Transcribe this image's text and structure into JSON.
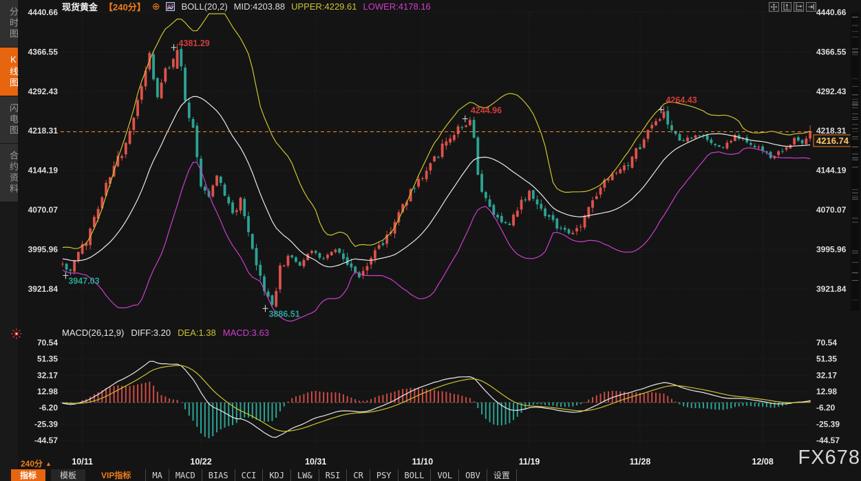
{
  "window": {
    "watermark": "FX678"
  },
  "sidebar": {
    "tabs": [
      {
        "label": "分时图",
        "active": false
      },
      {
        "label": "K线图",
        "active": true
      },
      {
        "label": "闪电图",
        "active": false
      },
      {
        "label": "合约资料",
        "active": false
      }
    ]
  },
  "header": {
    "symbol": "现货黄金",
    "period": "【240分】",
    "boll_label": "BOLL(20,2)",
    "mid_label": "MID:4203.88",
    "upper_label": "UPPER:4229.61",
    "lower_label": "LOWER:4178.16"
  },
  "macd_header": {
    "label": "MACD(26,12,9)",
    "diff_label": "DIFF:3.20",
    "dea_label": "DEA:1.38",
    "macd_label": "MACD:3.63"
  },
  "footer": {
    "period_label": "240分",
    "buttons": [
      {
        "label": "指标",
        "style": "active"
      },
      {
        "label": "模板",
        "style": "tab"
      },
      {
        "label": "VIP指标",
        "style": "vip"
      },
      {
        "label": "MA",
        "style": "plain"
      },
      {
        "label": "MACD",
        "style": "plain"
      },
      {
        "label": "BIAS",
        "style": "plain"
      },
      {
        "label": "CCI",
        "style": "plain"
      },
      {
        "label": "KDJ",
        "style": "plain"
      },
      {
        "label": "LW&",
        "style": "plain"
      },
      {
        "label": "RSI",
        "style": "plain"
      },
      {
        "label": "CR",
        "style": "plain"
      },
      {
        "label": "PSY",
        "style": "plain"
      },
      {
        "label": "BOLL",
        "style": "plain"
      },
      {
        "label": "VOL",
        "style": "plain"
      },
      {
        "label": "OBV",
        "style": "plain"
      },
      {
        "label": "设置",
        "style": "plain"
      }
    ]
  },
  "colors": {
    "up": "#df514c",
    "down": "#2ba394",
    "boll_upper": "#cdc430",
    "boll_mid": "#ebebeb",
    "boll_lower": "#cf3ecf",
    "accent_orange": "#f07d1a",
    "price_line": "#ff8a1e",
    "last_price_text": "#ffc966",
    "grid": "#2c2c2c",
    "hist_pos": "#cf4a45",
    "hist_neg": "#2ba394",
    "macd_diff_line": "#ebebeb",
    "macd_dea_line": "#cdc430",
    "annotation_high": "#d23c3c",
    "annotation_low": "#2ba394",
    "axis_text": "#dedede",
    "zero_line": "#5a5a5a"
  },
  "chart_data": [
    {
      "type": "candlestick",
      "title": "现货黄金 240分",
      "ylabel": "price",
      "grid": true,
      "y_ticks": [
        4440.66,
        4366.55,
        4292.43,
        4218.31,
        4144.19,
        4070.07,
        3995.96,
        3921.84
      ],
      "x_ticks": [
        {
          "label": "10/11",
          "index": 5
        },
        {
          "label": "10/22",
          "index": 35
        },
        {
          "label": "10/31",
          "index": 64
        },
        {
          "label": "11/10",
          "index": 91
        },
        {
          "label": "11/19",
          "index": 118
        },
        {
          "label": "11/28",
          "index": 146
        },
        {
          "label": "12/08",
          "index": 177
        }
      ],
      "n_candles": 190,
      "last_price": 4216.74,
      "price_anchors": [
        [
          0,
          3968
        ],
        [
          2,
          3952
        ],
        [
          4,
          3988
        ],
        [
          6,
          4012
        ],
        [
          9,
          4080
        ],
        [
          12,
          4135
        ],
        [
          15,
          4178
        ],
        [
          17,
          4210
        ],
        [
          19,
          4275
        ],
        [
          21,
          4335
        ],
        [
          22,
          4358
        ],
        [
          24,
          4278
        ],
        [
          26,
          4332
        ],
        [
          28,
          4352
        ],
        [
          29,
          4372
        ],
        [
          30,
          4348
        ],
        [
          31,
          4268
        ],
        [
          33,
          4228
        ],
        [
          35,
          4120
        ],
        [
          37,
          4096
        ],
        [
          39,
          4136
        ],
        [
          41,
          4100
        ],
        [
          43,
          4062
        ],
        [
          45,
          4086
        ],
        [
          47,
          4020
        ],
        [
          49,
          3966
        ],
        [
          51,
          3916
        ],
        [
          53,
          3895
        ],
        [
          55,
          3958
        ],
        [
          57,
          3986
        ],
        [
          60,
          3966
        ],
        [
          63,
          3996
        ],
        [
          66,
          3978
        ],
        [
          69,
          3998
        ],
        [
          72,
          3972
        ],
        [
          75,
          3942
        ],
        [
          77,
          3968
        ],
        [
          79,
          3996
        ],
        [
          81,
          4008
        ],
        [
          84,
          4048
        ],
        [
          87,
          4092
        ],
        [
          90,
          4126
        ],
        [
          93,
          4158
        ],
        [
          96,
          4186
        ],
        [
          99,
          4216
        ],
        [
          101,
          4228
        ],
        [
          103,
          4236
        ],
        [
          104,
          4198
        ],
        [
          105,
          4128
        ],
        [
          107,
          4086
        ],
        [
          110,
          4056
        ],
        [
          113,
          4042
        ],
        [
          116,
          4082
        ],
        [
          118,
          4106
        ],
        [
          120,
          4086
        ],
        [
          122,
          4066
        ],
        [
          125,
          4042
        ],
        [
          128,
          4024
        ],
        [
          131,
          4042
        ],
        [
          134,
          4086
        ],
        [
          137,
          4120
        ],
        [
          140,
          4138
        ],
        [
          143,
          4152
        ],
        [
          146,
          4192
        ],
        [
          149,
          4228
        ],
        [
          152,
          4250
        ],
        [
          154,
          4216
        ],
        [
          156,
          4196
        ],
        [
          158,
          4202
        ],
        [
          161,
          4210
        ],
        [
          164,
          4196
        ],
        [
          167,
          4186
        ],
        [
          170,
          4210
        ],
        [
          173,
          4196
        ],
        [
          176,
          4188
        ],
        [
          179,
          4168
        ],
        [
          182,
          4180
        ],
        [
          185,
          4206
        ],
        [
          187,
          4196
        ],
        [
          189,
          4216.74
        ]
      ],
      "key_points": [
        {
          "index": 2,
          "type": "low",
          "value": 3947.03
        },
        {
          "index": 29,
          "type": "high",
          "value": 4381.29
        },
        {
          "index": 53,
          "type": "low",
          "value": 3886.51
        },
        {
          "index": 103,
          "type": "high",
          "value": 4244.96
        },
        {
          "index": 152,
          "type": "high",
          "value": 4264.43
        }
      ],
      "bollinger": {
        "period": 20,
        "deviation": 2,
        "mid": 4203.88,
        "upper": 4229.61,
        "lower": 4178.16
      }
    },
    {
      "type": "macd",
      "params": [
        26,
        12,
        9
      ],
      "diff": 3.2,
      "dea": 1.38,
      "macd": 3.63,
      "y_ticks": [
        70.54,
        51.35,
        32.17,
        12.98,
        -6.2,
        -25.39,
        -44.57
      ]
    }
  ]
}
